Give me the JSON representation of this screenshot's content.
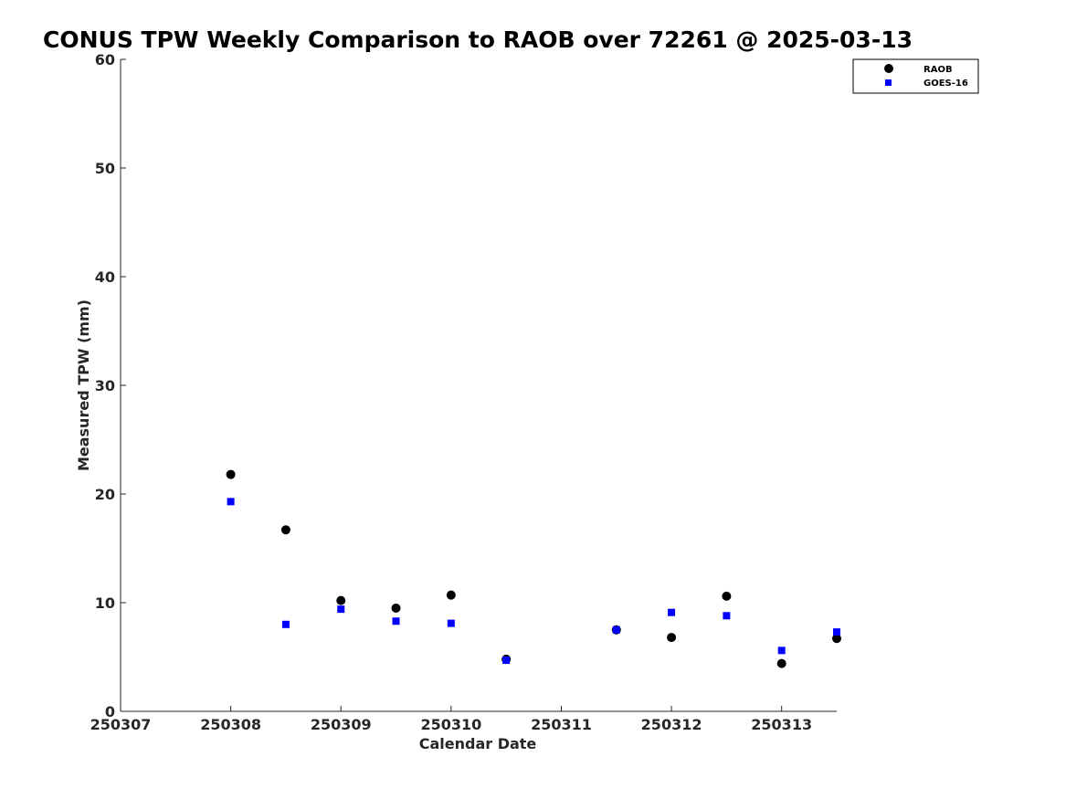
{
  "chart_data": {
    "type": "scatter",
    "title": "CONUS TPW Weekly Comparison to RAOB over 72261 @ 2025-03-13",
    "xlabel": "Calendar Date",
    "ylabel": "Measured TPW (mm)",
    "xlim": [
      250307,
      250313.5
    ],
    "ylim": [
      0,
      60
    ],
    "x_ticks": [
      250307,
      250308,
      250309,
      250310,
      250311,
      250312,
      250313
    ],
    "x_tick_labels": [
      "250307",
      "250308",
      "250309",
      "250310",
      "250311",
      "250312",
      "250313"
    ],
    "y_ticks": [
      0,
      10,
      20,
      30,
      40,
      50,
      60
    ],
    "y_tick_labels": [
      "0",
      "10",
      "20",
      "30",
      "40",
      "50",
      "60"
    ],
    "grid": false,
    "legend_position": "top-right",
    "series": [
      {
        "name": "RAOB",
        "marker": "circle",
        "color": "#000000",
        "points": [
          [
            250308,
            21.8
          ],
          [
            250308.5,
            16.7
          ],
          [
            250309,
            10.2
          ],
          [
            250309.5,
            9.5
          ],
          [
            250310,
            10.7
          ],
          [
            250310.5,
            4.8
          ],
          [
            250311.5,
            7.5
          ],
          [
            250312,
            6.8
          ],
          [
            250312.5,
            10.6
          ],
          [
            250313,
            4.4
          ],
          [
            250313.5,
            6.7
          ]
        ]
      },
      {
        "name": "GOES-16",
        "marker": "square",
        "color": "#0000ff",
        "points": [
          [
            250308,
            19.3
          ],
          [
            250308.5,
            8.0
          ],
          [
            250309,
            9.4
          ],
          [
            250309.5,
            8.3
          ],
          [
            250310,
            8.1
          ],
          [
            250310.5,
            4.7
          ],
          [
            250311.5,
            7.5
          ],
          [
            250312,
            9.1
          ],
          [
            250312.5,
            8.8
          ],
          [
            250313,
            5.6
          ],
          [
            250313.5,
            7.3
          ]
        ]
      }
    ]
  }
}
